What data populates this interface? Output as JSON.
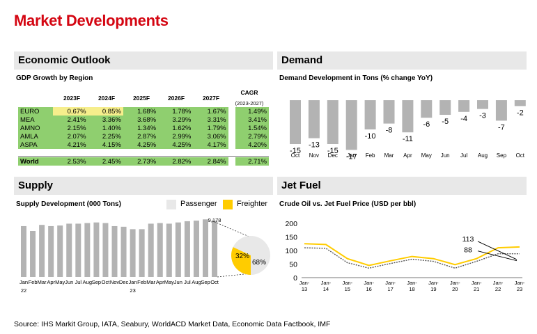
{
  "title": "Market Developments",
  "colors": {
    "accent": "#d40511",
    "yellow": "#ffcc00",
    "grey_bar": "#b3b3b3",
    "light_grey": "#e8e8e8",
    "green_table": "#8fcf6f",
    "yellow_table": "#f6ee8c"
  },
  "economic": {
    "header": "Economic Outlook",
    "subtitle": "GDP Growth by Region",
    "years": [
      "2023F",
      "2024F",
      "2025F",
      "2026F",
      "2027F"
    ],
    "cagr_label": "CAGR",
    "cagr_period": "(2023-2027)",
    "rows": [
      {
        "region": "EURO",
        "values": [
          "0.67%",
          "0.85%",
          "1.68%",
          "1.78%",
          "1.67%"
        ],
        "cagr": "1.49%"
      },
      {
        "region": "MEA",
        "values": [
          "2.41%",
          "3.36%",
          "3.68%",
          "3.29%",
          "3.31%"
        ],
        "cagr": "3.41%"
      },
      {
        "region": "AMNO",
        "values": [
          "2.15%",
          "1.40%",
          "1.34%",
          "1.62%",
          "1.79%"
        ],
        "cagr": "1.54%"
      },
      {
        "region": "AMLA",
        "values": [
          "2.07%",
          "2.25%",
          "2.87%",
          "2.99%",
          "3.06%"
        ],
        "cagr": "2.79%"
      },
      {
        "region": "ASPA",
        "values": [
          "4.21%",
          "4.15%",
          "4.25%",
          "4.25%",
          "4.17%"
        ],
        "cagr": "4.20%"
      }
    ],
    "world": {
      "region": "World",
      "values": [
        "2.53%",
        "2.45%",
        "2.73%",
        "2.82%",
        "2.84%"
      ],
      "cagr": "2.71%"
    }
  },
  "demand": {
    "header": "Demand",
    "subtitle": "Demand Development in Tons (% change YoY)"
  },
  "supply": {
    "header": "Supply",
    "subtitle": "Supply Development (000 Tons)",
    "legend_passenger": "Passenger",
    "legend_freighter": "Freighter",
    "last_label": "9,178",
    "year_22": "22",
    "year_23": "23"
  },
  "jetfuel": {
    "header": "Jet Fuel",
    "subtitle": "Crude Oil vs. Jet Fuel Price (USD per bbl)",
    "label_113": "113",
    "label_88": "88"
  },
  "source": "Source: IHS Markit Group, IATA, Seabury, WorldACD Market Data, Economic Data Factbook, IMF",
  "chart_data": [
    {
      "type": "bar",
      "title": "Demand Development in Tons (% change YoY)",
      "categories": [
        "Oct",
        "Nov",
        "Dec",
        "Jan",
        "Feb",
        "Mar",
        "Apr",
        "May",
        "Jun",
        "Jul",
        "Aug",
        "Sep",
        "Oct"
      ],
      "values": [
        -15,
        -13,
        -15,
        -17,
        -10,
        -8,
        -11,
        -6,
        -5,
        -4,
        -3,
        -7,
        -2
      ]
    },
    {
      "type": "bar",
      "title": "Supply Development (000 Tons)",
      "categories": [
        "Jan",
        "Feb",
        "Mar",
        "Apr",
        "May",
        "Jun",
        "Jul",
        "Aug",
        "Sep",
        "Oct",
        "Nov",
        "Dec",
        "Jan",
        "Feb",
        "Mar",
        "Apr",
        "May",
        "Jun",
        "Jul",
        "Aug",
        "Sep",
        "Oct"
      ],
      "values": [
        8300,
        7500,
        8500,
        8300,
        8400,
        8700,
        8700,
        8800,
        8900,
        8800,
        8300,
        8200,
        7800,
        7800,
        8700,
        8800,
        8700,
        8900,
        9100,
        9200,
        9400,
        9178
      ],
      "pie": {
        "labels": [
          "Freighter",
          "Passenger"
        ],
        "values": [
          32,
          68
        ]
      }
    },
    {
      "type": "line",
      "title": "Crude Oil vs. Jet Fuel Price (USD per bbl)",
      "x": [
        "Jan-13",
        "Jan-14",
        "Jan-15",
        "Jan-16",
        "Jan-17",
        "Jan-18",
        "Jan-19",
        "Jan-20",
        "Jan-21",
        "Jan-22",
        "Jan-23"
      ],
      "ylim": [
        0,
        200
      ],
      "yticks": [
        0,
        50,
        100,
        150,
        200
      ],
      "series": [
        {
          "values": [
            125,
            122,
            70,
            45,
            62,
            78,
            70,
            48,
            70,
            110,
            113
          ]
        },
        {
          "values": [
            110,
            108,
            55,
            35,
            52,
            68,
            60,
            35,
            60,
            88,
            88
          ]
        }
      ]
    }
  ]
}
